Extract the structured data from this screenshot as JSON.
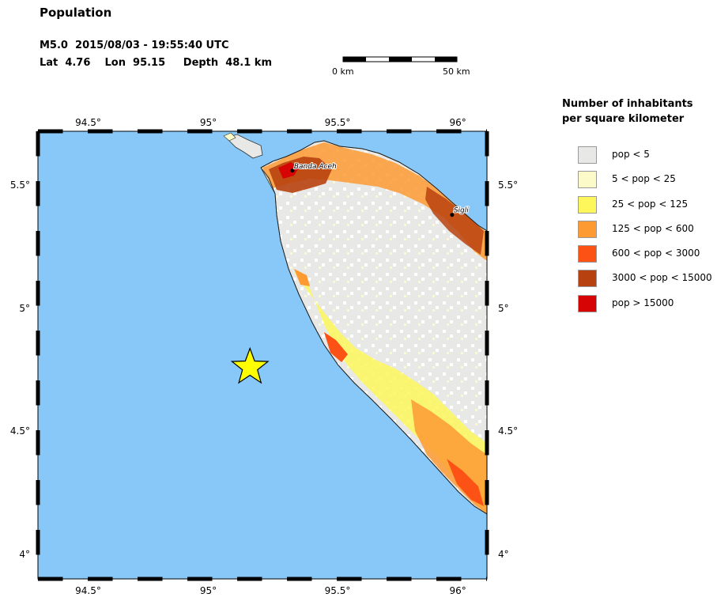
{
  "header": {
    "title": "Population",
    "event_line1": "M5.0  2015/08/03 - 19:55:40 UTC",
    "event_line2": "Lat  4.76    Lon  95.15     Depth  48.1 km"
  },
  "scalebar": {
    "left_label": "0 km",
    "right_label": "50 km"
  },
  "map": {
    "extent": {
      "lon_min": 94.3,
      "lon_max": 96.1,
      "lat_min": 3.9,
      "lat_max": 5.72
    },
    "lon_ticks": [
      {
        "value": 94.5,
        "label": "94.5°"
      },
      {
        "value": 95.0,
        "label": "95°"
      },
      {
        "value": 95.5,
        "label": "95.5°"
      },
      {
        "value": 96.0,
        "label": "96°"
      }
    ],
    "lat_ticks": [
      {
        "value": 5.5,
        "label": "5.5°"
      },
      {
        "value": 5.0,
        "label": "5°"
      },
      {
        "value": 4.5,
        "label": "4.5°"
      },
      {
        "value": 4.0,
        "label": "4°"
      }
    ],
    "ocean_color": "#87c8f8",
    "land_base_color": "#e8e8e6",
    "epicenter": {
      "lon": 95.15,
      "lat": 4.76,
      "color": "#ffff00",
      "icon": "star-icon"
    },
    "cities": [
      {
        "name": "Banda Aceh",
        "lon": 95.32,
        "lat": 5.56
      },
      {
        "name": "Sigli",
        "lon": 95.96,
        "lat": 5.38
      }
    ]
  },
  "legend": {
    "title_line1": "Number of inhabitants",
    "title_line2": "per square kilometer",
    "items": [
      {
        "label": "pop < 5",
        "color": "#e8e8e6"
      },
      {
        "label": "5 < pop < 25",
        "color": "#fcfac8"
      },
      {
        "label": "25 < pop < 125",
        "color": "#fdf75c"
      },
      {
        "label": "125 < pop < 600",
        "color": "#fd9a32"
      },
      {
        "label": "600 < pop < 3000",
        "color": "#fc5215"
      },
      {
        "label": "3000 < pop < 15000",
        "color": "#b8420f"
      },
      {
        "label": "pop > 15000",
        "color": "#d60404"
      }
    ]
  }
}
